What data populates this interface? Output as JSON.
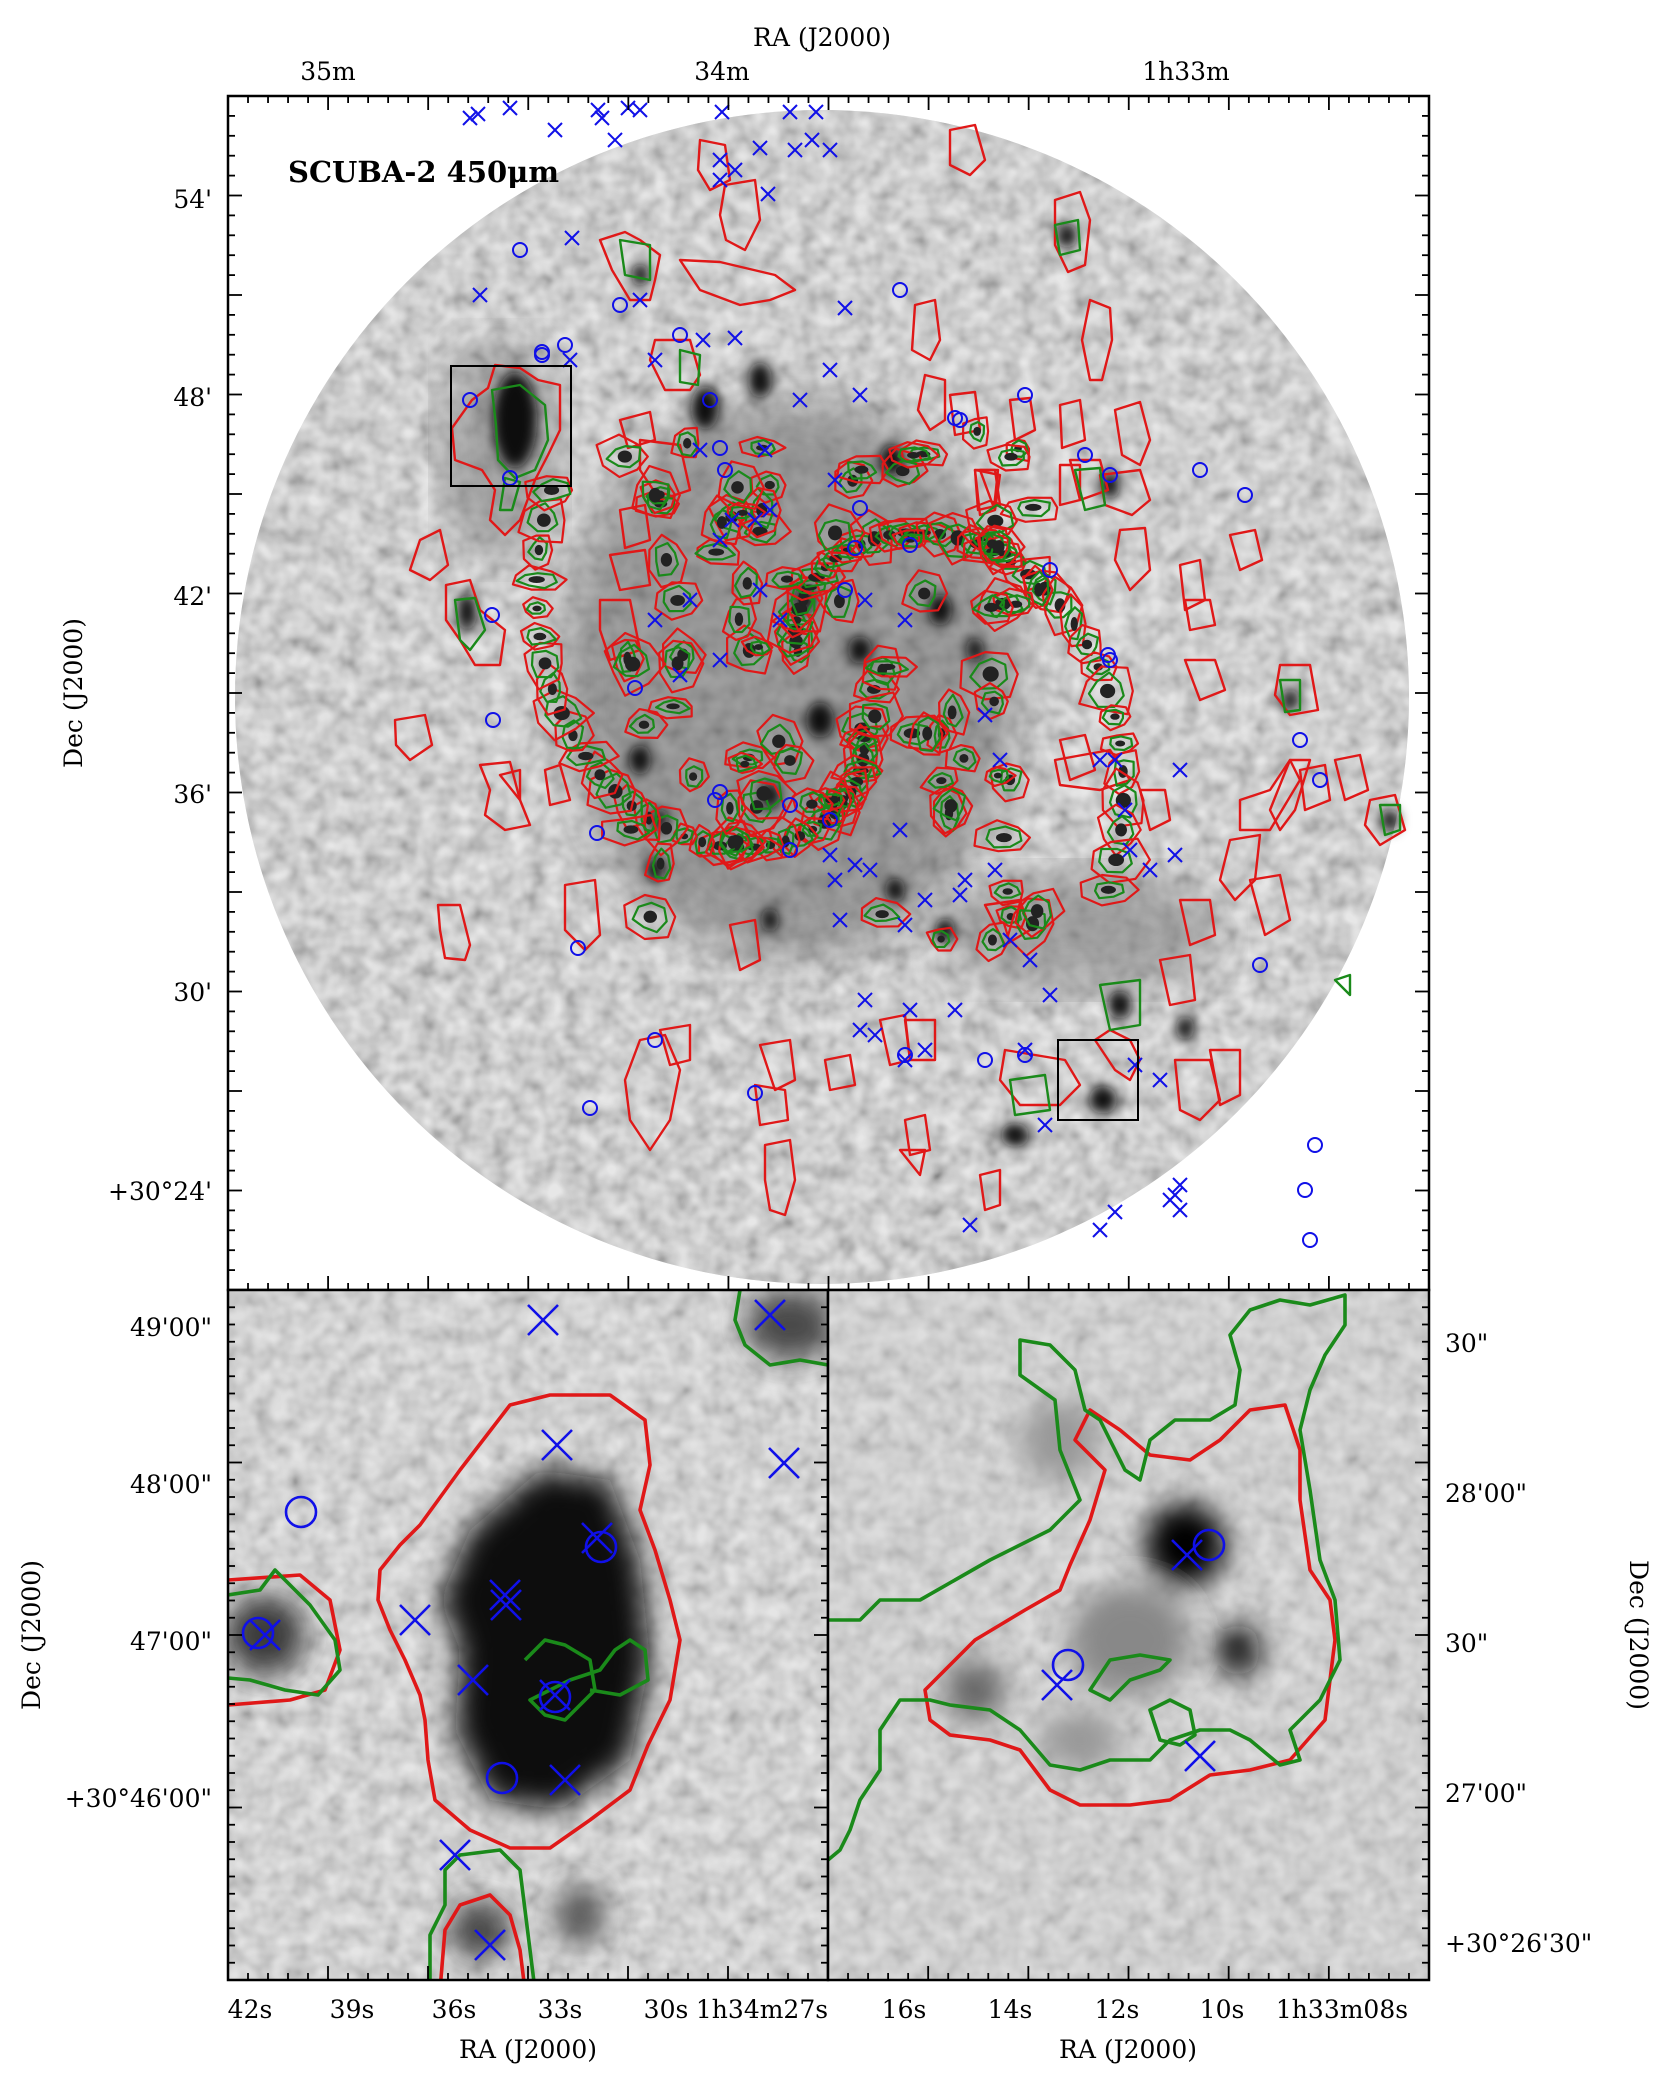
{
  "figure": {
    "top_panel": {
      "title": "SCUBA-2 450μm",
      "x_label": "RA (J2000)",
      "y_label": "Dec (J2000)",
      "x_ticks": [
        "35m",
        "34m",
        "1h33m"
      ],
      "y_ticks": [
        "54'",
        "48'",
        "42'",
        "36'",
        "30'",
        "+30°24'"
      ],
      "zoom_boxes": 2
    },
    "bottom_left_panel": {
      "x_label": "RA (J2000)",
      "y_label": "Dec (J2000)",
      "x_ticks": [
        "42s",
        "39s",
        "36s",
        "33s",
        "30s",
        "1h34m27s"
      ],
      "y_ticks": [
        "49'00\"",
        "48'00\"",
        "47'00\"",
        "+30°46'00\""
      ]
    },
    "bottom_right_panel": {
      "x_label": "RA (J2000)",
      "y_label": "Dec (J2000)",
      "x_ticks": [
        "16s",
        "14s",
        "12s",
        "10s",
        "1h33m08s"
      ],
      "y_ticks": [
        "30\"",
        "28'00\"",
        "30\"",
        "27'00\"",
        "+30°26'30\""
      ]
    },
    "colors": {
      "red_contour": "#e01818",
      "green_contour": "#1a8a1a",
      "marker_blue": "#1010e8",
      "frame": "#000000"
    }
  }
}
